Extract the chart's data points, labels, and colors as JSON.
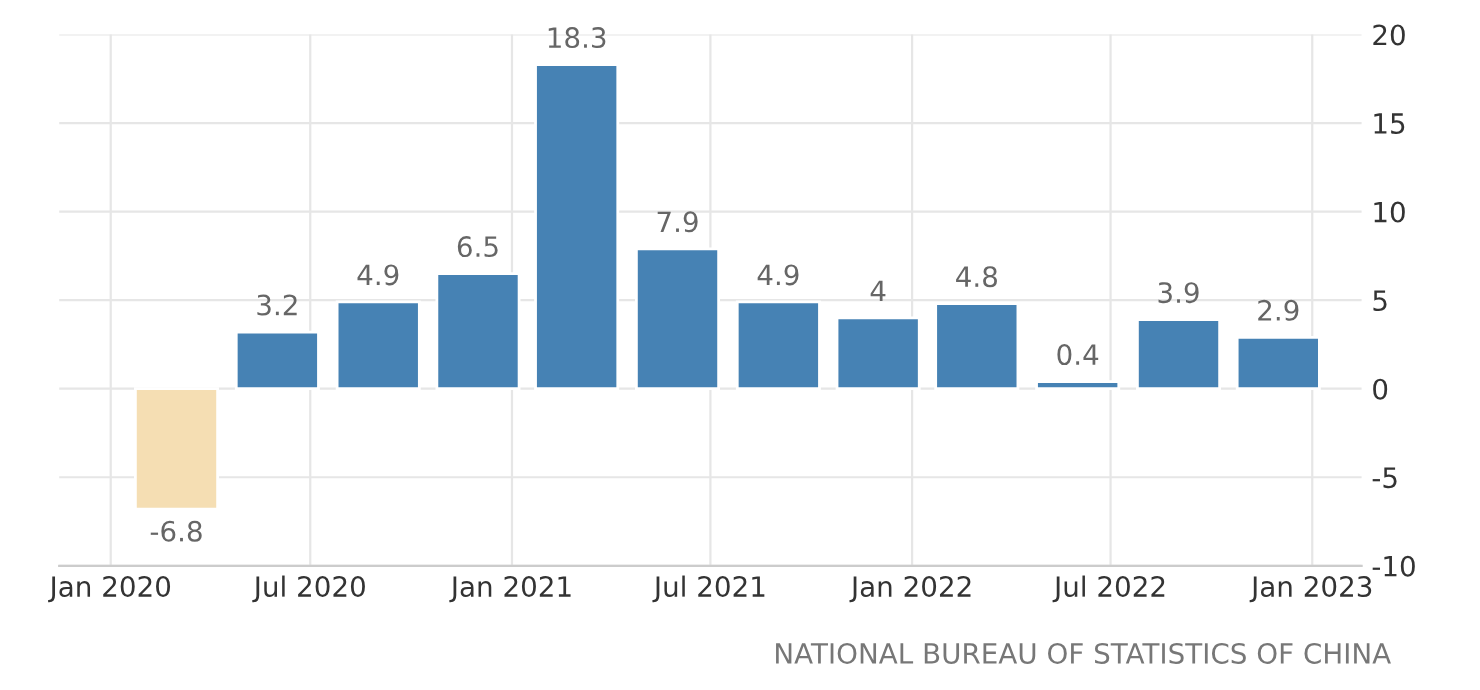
{
  "chart_data": {
    "type": "bar",
    "x": [
      "2020-03",
      "2020-06",
      "2020-09",
      "2020-12",
      "2021-03",
      "2021-06",
      "2021-09",
      "2021-12",
      "2022-03",
      "2022-06",
      "2022-09",
      "2022-12"
    ],
    "values": [
      -6.8,
      3.2,
      4.9,
      6.5,
      18.3,
      7.9,
      4.9,
      4,
      4.8,
      0.4,
      3.9,
      2.9
    ],
    "colors": [
      "#f5deb3",
      "#4682b4",
      "#4682b4",
      "#4682b4",
      "#4682b4",
      "#4682b4",
      "#4682b4",
      "#4682b4",
      "#4682b4",
      "#4682b4",
      "#4682b4",
      "#4682b4"
    ],
    "data_labels": true,
    "xlim": [
      "2019-11-15",
      "2023-02-15"
    ],
    "xticks": [
      {
        "value": "2020-01",
        "label": "Jan 2020"
      },
      {
        "value": "2020-07",
        "label": "Jul 2020"
      },
      {
        "value": "2021-01",
        "label": "Jan 2021"
      },
      {
        "value": "2021-07",
        "label": "Jul 2021"
      },
      {
        "value": "2022-01",
        "label": "Jan 2022"
      },
      {
        "value": "2022-07",
        "label": "Jul 2022"
      },
      {
        "value": "2023-01",
        "label": "Jan 2023"
      }
    ],
    "ylim": [
      -10,
      20
    ],
    "yticks": [
      -10,
      -5,
      0,
      5,
      10,
      15,
      20
    ],
    "grid": true,
    "annotations": [
      "NATIONAL BUREAU OF STATISTICS OF CHINA"
    ]
  }
}
